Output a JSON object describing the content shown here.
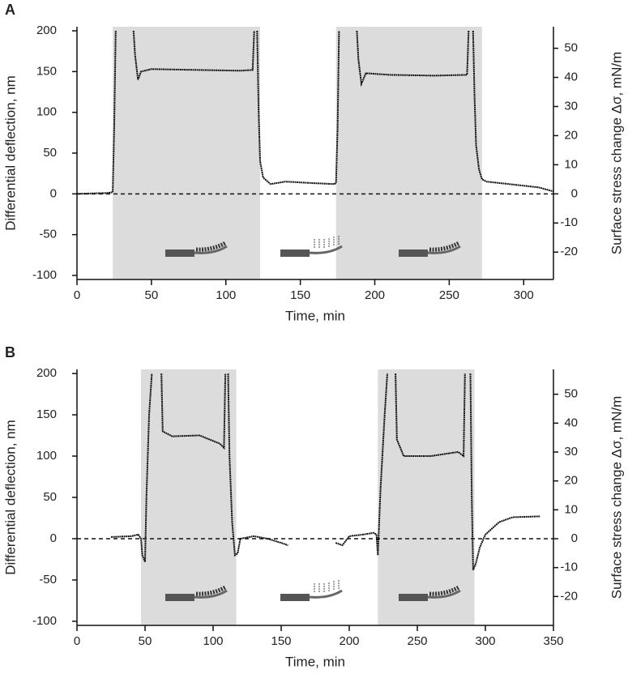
{
  "chart_data": [
    {
      "type": "line",
      "panel_label": "A",
      "xlabel": "Time, min",
      "ylabel": "Differential deflection, nm",
      "y2label": "Surface stress change Δσ, mN/m",
      "xlim": [
        0,
        320
      ],
      "xticks": [
        0,
        50,
        100,
        150,
        200,
        250,
        300
      ],
      "ylim": [
        -105,
        205
      ],
      "yticks": [
        -100,
        -50,
        0,
        50,
        100,
        150,
        200
      ],
      "y2lim": [
        -29.4,
        57.4
      ],
      "y2ticks": [
        -20,
        -10,
        0,
        10,
        20,
        30,
        40,
        50
      ],
      "shaded_regions": [
        [
          24,
          123
        ],
        [
          174,
          272
        ]
      ],
      "series": [
        {
          "color": "#111111",
          "x": [
            0,
            20,
            24,
            25,
            26,
            38,
            38,
            39,
            41,
            43,
            50,
            80,
            110,
            118,
            119,
            121,
            121,
            122,
            123,
            125,
            130,
            140,
            160,
            173,
            174,
            175,
            176,
            188,
            188,
            189,
            191,
            194,
            210,
            240,
            262,
            263,
            266,
            266,
            267,
            268,
            270,
            272,
            275,
            290,
            310,
            320
          ],
          "values": [
            0,
            1,
            2,
            80,
            200,
            null,
            200,
            170,
            140,
            150,
            153,
            152,
            151,
            152,
            200,
            null,
            200,
            100,
            40,
            20,
            12,
            15,
            13,
            12,
            14,
            80,
            200,
            null,
            200,
            165,
            135,
            148,
            146,
            145,
            146,
            200,
            null,
            200,
            120,
            60,
            30,
            18,
            15,
            12,
            8,
            3
          ]
        }
      ]
    },
    {
      "type": "line",
      "panel_label": "B",
      "xlabel": "Time, min",
      "ylabel": "Differential deflection, nm",
      "y2label": "Surface stress change Δσ, mN/m",
      "xlim": [
        0,
        350
      ],
      "xticks": [
        0,
        50,
        100,
        150,
        200,
        250,
        300,
        350
      ],
      "ylim": [
        -105,
        205
      ],
      "yticks": [
        -100,
        -50,
        0,
        50,
        100,
        150,
        200
      ],
      "y2lim": [
        -30,
        58.6
      ],
      "y2ticks": [
        -20,
        -10,
        0,
        10,
        20,
        30,
        40,
        50
      ],
      "shaded_regions": [
        [
          47,
          117
        ],
        [
          221,
          292
        ]
      ],
      "series": [
        {
          "color": "#111111",
          "x": [
            25,
            40,
            45,
            47,
            48,
            50,
            51,
            53,
            55,
            62,
            62,
            63,
            70,
            90,
            105,
            108,
            109,
            111,
            111,
            112,
            114,
            116,
            118,
            120,
            130,
            140,
            150,
            155,
            190,
            190,
            195,
            200,
            210,
            218,
            220,
            221,
            223,
            226,
            228,
            234,
            234,
            235,
            240,
            260,
            280,
            284,
            285,
            289,
            289,
            290,
            291,
            293,
            296,
            300,
            310,
            320,
            340
          ],
          "values": [
            2,
            3,
            5,
            0,
            -20,
            -28,
            50,
            150,
            200,
            null,
            200,
            130,
            124,
            125,
            115,
            110,
            200,
            null,
            200,
            100,
            20,
            -20,
            -18,
            0,
            3,
            0,
            -5,
            -8,
            null,
            -5,
            -8,
            3,
            5,
            7,
            5,
            -20,
            60,
            150,
            200,
            null,
            200,
            120,
            100,
            100,
            105,
            100,
            200,
            null,
            200,
            50,
            -38,
            -30,
            -10,
            5,
            20,
            26,
            27
          ]
        }
      ]
    }
  ]
}
